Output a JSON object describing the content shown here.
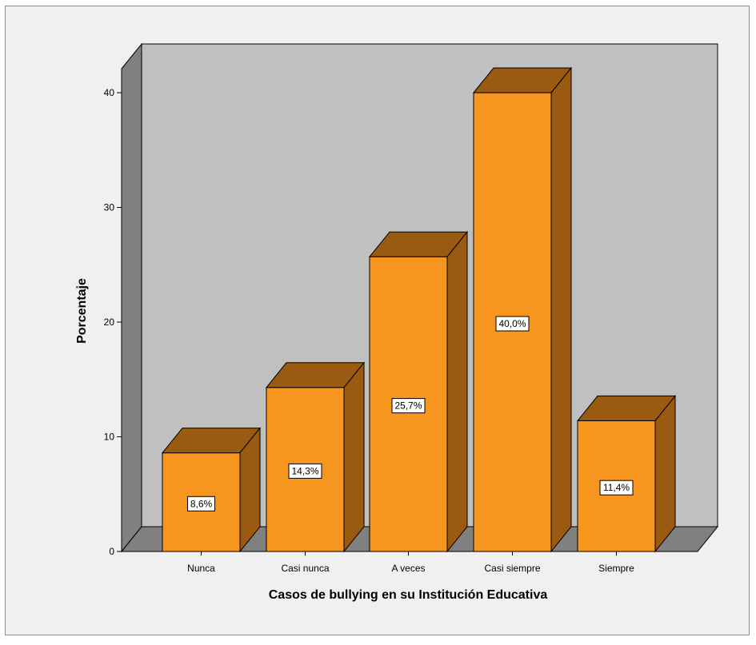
{
  "chart_data": {
    "type": "bar",
    "title": "",
    "xlabel": "Casos de bullying en su Institución Educativa",
    "ylabel": "Porcentaje",
    "categories": [
      "Nunca",
      "Casi nunca",
      "A veces",
      "Casi siempre",
      "Siempre"
    ],
    "values": [
      8.6,
      14.3,
      25.7,
      40.0,
      11.4
    ],
    "data_labels": [
      "8,6%",
      "14,3%",
      "25,7%",
      "40,0%",
      "11,4%"
    ],
    "ylim": [
      0,
      40
    ],
    "yticks": [
      0,
      10,
      20,
      30,
      40
    ],
    "ytick_labels": [
      "0",
      "10",
      "20",
      "30",
      "40"
    ],
    "grid": false,
    "style": "3d",
    "colors": {
      "bar_front": "#f7961f",
      "bar_top": "#9a5a12",
      "bar_side": "#9a5a12",
      "back_wall": "#c0c0c0",
      "side_wall": "#808080",
      "floor": "#808080",
      "background": "#f0f0f0"
    }
  }
}
